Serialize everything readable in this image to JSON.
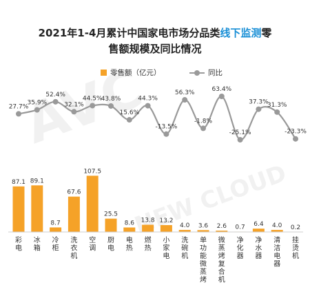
{
  "title": {
    "line1_pre": "2021年1-4月累计中国家电市场分品类",
    "line1_hl": "线下监测",
    "line1_post": "零",
    "line2": "售额规模及同比情况"
  },
  "watermark": {
    "main": "AVC",
    "sub": "NEW CLOUD"
  },
  "colors": {
    "bar": "#F5A228",
    "line": "#999999",
    "highlight": "#1a8fd6"
  },
  "chart_data": {
    "type": "bar",
    "categories": [
      "彩电",
      "冰箱",
      "冷柜",
      "洗衣机",
      "空调",
      "厨电",
      "电热",
      "燃热",
      "小家电",
      "洗碗机",
      "单功能微蒸烤",
      "微蒸烤复合机",
      "净化器",
      "净水器",
      "清洁电器",
      "挂烫机"
    ],
    "series": [
      {
        "name": "零售额（亿元）",
        "type": "bar",
        "values": [
          87.1,
          89.1,
          8.7,
          67.6,
          107.5,
          25.5,
          8.6,
          13.8,
          13.2,
          4.0,
          3.6,
          2.6,
          0.7,
          6.4,
          4.0,
          0.2
        ],
        "labels": [
          "87.1",
          "89.1",
          "8.7",
          "67.6",
          "107.5",
          "25.5",
          "8.6",
          "13.8",
          "13.2",
          "4.0",
          "3.6",
          "2.6",
          "0.7",
          "6.4",
          "4.0",
          "0.2"
        ]
      },
      {
        "name": "同比",
        "type": "line",
        "unit": "%",
        "values": [
          27.7,
          35.9,
          52.4,
          32.1,
          44.5,
          43.8,
          15.6,
          44.3,
          -13.5,
          56.3,
          -1.8,
          63.4,
          -25.1,
          37.3,
          31.3,
          -23.3
        ],
        "labels": [
          "27.7%",
          "35.9%",
          "52.4%",
          "32.1%",
          "44.5%",
          "43.8%",
          "15.6%",
          "44.3%",
          "-13.5%",
          "56.3%",
          "-1.8%",
          "63.4%",
          "-25.1%",
          "37.3%",
          "31.3%",
          "-23.3%"
        ]
      }
    ],
    "legend": "top-center",
    "grid": false
  }
}
